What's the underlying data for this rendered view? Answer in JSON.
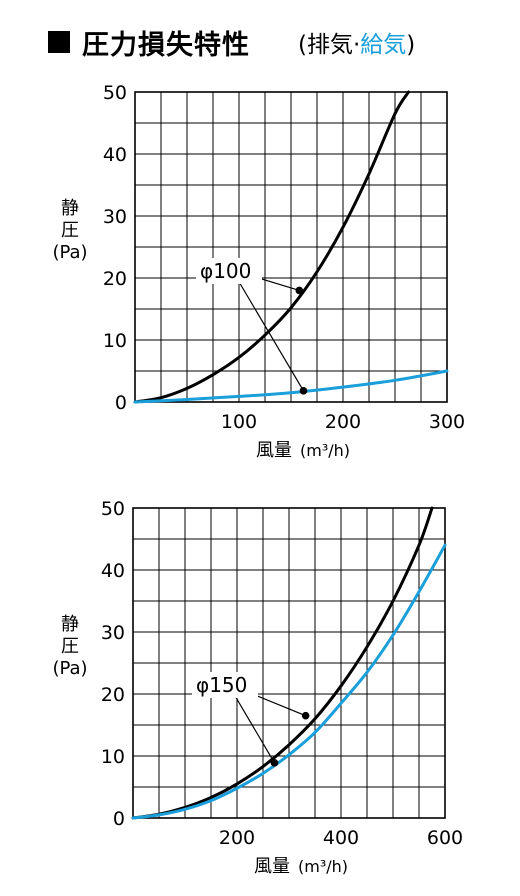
{
  "header": {
    "title": "圧力損失特性",
    "sub_open": "(排気·",
    "sub_supply": "給気",
    "sub_close": ")"
  },
  "colors": {
    "exhaust": "#000000",
    "supply": "#1a9fdb",
    "grid": "#000000"
  },
  "chart_data": [
    {
      "type": "line",
      "xlabel": "風量",
      "xunit": "(m³/h)",
      "ylabel": [
        "静",
        "圧",
        "(Pa)"
      ],
      "xlim": [
        0,
        300
      ],
      "ylim": [
        0,
        50
      ],
      "x_ticks": [
        "100",
        "200",
        "300"
      ],
      "y_ticks": [
        "0",
        "10",
        "20",
        "30",
        "40",
        "50"
      ],
      "annotation": "φ100",
      "series": [
        {
          "role": "exhaust",
          "x": [
            0,
            25,
            50,
            75,
            100,
            125,
            150,
            175,
            200,
            225,
            250,
            263
          ],
          "y": [
            0,
            0.7,
            2.2,
            4.4,
            7.2,
            10.8,
            15.2,
            21.0,
            28.2,
            36.8,
            46.5,
            50
          ]
        },
        {
          "role": "supply",
          "x": [
            0,
            50,
            100,
            150,
            200,
            250,
            300
          ],
          "y": [
            0,
            0.4,
            0.9,
            1.5,
            2.4,
            3.5,
            5.0
          ]
        }
      ],
      "points": [
        {
          "series": "exhaust",
          "x": 158,
          "y": 18.0
        },
        {
          "series": "supply",
          "x": 162,
          "y": 1.8
        }
      ]
    },
    {
      "type": "line",
      "xlabel": "風量",
      "xunit": "(m³/h)",
      "ylabel": [
        "静",
        "圧",
        "(Pa)"
      ],
      "xlim": [
        0,
        600
      ],
      "ylim": [
        0,
        50
      ],
      "x_ticks": [
        "200",
        "400",
        "600"
      ],
      "y_ticks": [
        "0",
        "10",
        "20",
        "30",
        "40",
        "50"
      ],
      "annotation": "φ150",
      "series": [
        {
          "role": "exhaust",
          "x": [
            0,
            50,
            100,
            150,
            200,
            250,
            300,
            350,
            400,
            450,
            500,
            550,
            575
          ],
          "y": [
            0,
            0.6,
            1.7,
            3.3,
            5.5,
            8.3,
            11.8,
            16.0,
            21.3,
            27.6,
            35.0,
            44.0,
            50
          ]
        },
        {
          "role": "supply",
          "x": [
            0,
            50,
            100,
            150,
            200,
            250,
            300,
            350,
            400,
            450,
            500,
            550,
            600
          ],
          "y": [
            0,
            0.5,
            1.4,
            2.8,
            4.8,
            7.2,
            10.2,
            13.8,
            18.5,
            23.5,
            29.5,
            36.5,
            44.0
          ]
        }
      ],
      "points": [
        {
          "series": "exhaust",
          "x": 332,
          "y": 16.5
        },
        {
          "series": "supply",
          "x": 272,
          "y": 8.9
        }
      ]
    }
  ]
}
